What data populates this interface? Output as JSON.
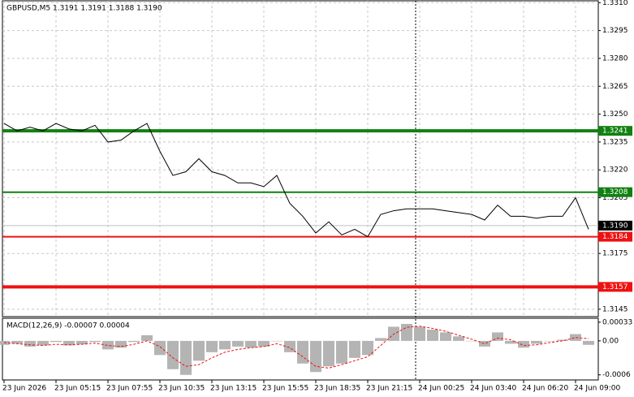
{
  "chart_data": [
    {
      "type": "line",
      "title": "GBPUSD,M5  1.3191 1.3191 1.3188 1.3190",
      "categories": [
        "23 Jun 2026",
        null,
        null,
        null,
        "23 Jun 05:15",
        null,
        null,
        null,
        "23 Jun 07:55",
        null,
        null,
        null,
        "23 Jun 10:35",
        null,
        null,
        null,
        "23 Jun 13:15",
        null,
        null,
        null,
        "23 Jun 15:55",
        null,
        null,
        null,
        "23 Jun 18:35",
        null,
        null,
        null,
        "23 Jun 21:15",
        null,
        null,
        null,
        "24 Jun 00:25",
        null,
        null,
        null,
        "24 Jun 03:40",
        null,
        null,
        null,
        "24 Jun 06:20",
        null,
        null,
        null,
        "24 Jun 09:00",
        null
      ],
      "series": [
        {
          "name": "GBPUSD",
          "color": "#000000",
          "values": [
            1.3245,
            1.3241,
            1.3243,
            1.3241,
            1.3245,
            1.3242,
            1.3241,
            1.3244,
            1.3235,
            1.3236,
            1.3241,
            1.3245,
            1.323,
            1.3217,
            1.3219,
            1.3226,
            1.3219,
            1.3217,
            1.3213,
            1.3213,
            1.3211,
            1.3217,
            1.3202,
            1.3195,
            1.3186,
            1.3192,
            1.3185,
            1.3188,
            1.3184,
            1.3196,
            1.3198,
            1.3199,
            1.3199,
            1.3199,
            1.3198,
            1.3197,
            1.3196,
            1.3193,
            1.3201,
            1.3195,
            1.3195,
            1.3194,
            1.3195,
            1.3195,
            1.3205,
            1.3188
          ]
        }
      ],
      "ylim": [
        1.3141,
        1.3311
      ],
      "yticks": [
        {
          "value": 1.331,
          "label": "1.3310"
        },
        {
          "value": 1.3295,
          "label": "1.3295"
        },
        {
          "value": 1.328,
          "label": "1.3280"
        },
        {
          "value": 1.3265,
          "label": "1.3265"
        },
        {
          "value": 1.325,
          "label": "1.3250"
        },
        {
          "value": 1.3235,
          "label": "1.3235"
        },
        {
          "value": 1.322,
          "label": "1.3220"
        },
        {
          "value": 1.3205,
          "label": "1.3205"
        },
        {
          "value": 1.3175,
          "label": "1.3175"
        },
        {
          "value": 1.3145,
          "label": "1.3145"
        }
      ],
      "grid": true,
      "levels": [
        {
          "value": 1.3241,
          "label": "1.3241",
          "color": "#118011",
          "width": 4
        },
        {
          "value": 1.3208,
          "label": "1.3208",
          "color": "#118011",
          "width": 2
        },
        {
          "value": 1.319,
          "label": "1.3190",
          "color": "#000000",
          "width": 1
        },
        {
          "value": 1.3184,
          "label": "1.3184",
          "color": "#ee1111",
          "width": 2
        },
        {
          "value": 1.3157,
          "label": "1.3157",
          "color": "#ee1111",
          "width": 4
        }
      ]
    },
    {
      "type": "macd",
      "title": "MACD(12,26,9) -0.00007 0.00004",
      "series": [
        {
          "name": "MACD",
          "color": "#b4b4b4",
          "values": [
            -7e-05,
            -5e-05,
            -0.0001,
            -8e-05,
            -2e-05,
            -8e-05,
            -6e-05,
            -2e-05,
            -0.00015,
            -0.00012,
            -2e-05,
            0.0001,
            -0.00025,
            -0.0005,
            -0.0006,
            -0.00035,
            -0.0002,
            -0.00015,
            -0.0001,
            -0.00012,
            -0.0001,
            0,
            -0.0002,
            -0.0004,
            -0.00055,
            -0.00045,
            -0.0004,
            -0.0003,
            -0.00025,
            5e-05,
            0.00025,
            0.0003,
            0.00025,
            0.0002,
            0.00015,
            8e-05,
            0,
            -0.0001,
            0.00015,
            -5e-05,
            -0.00012,
            -5e-05,
            0,
            2e-05,
            0.00012,
            -7e-05
          ]
        },
        {
          "name": "Signal",
          "color": "#ee1111",
          "values": [
            -3e-05,
            -5e-05,
            -7e-05,
            -8e-05,
            -6e-05,
            -7e-05,
            -6e-05,
            -4e-05,
            -8e-05,
            -0.0001,
            -6e-05,
            0,
            -0.0001,
            -0.0003,
            -0.00045,
            -0.00042,
            -0.0003,
            -0.0002,
            -0.00015,
            -0.00012,
            -0.0001,
            -5e-05,
            -0.00012,
            -0.00028,
            -0.00045,
            -0.00048,
            -0.00042,
            -0.00035,
            -0.00028,
            -8e-05,
            0.00012,
            0.00024,
            0.00026,
            0.00022,
            0.00017,
            0.0001,
            3e-05,
            -5e-05,
            5e-05,
            2e-05,
            -8e-05,
            -7e-05,
            -3e-05,
            0,
            6e-05,
            4e-05
          ]
        }
      ],
      "ylim": [
        -0.00069,
        0.0004
      ],
      "yticks": [
        0.00033,
        {
          "value": 0,
          "label": "0.00"
        },
        -0.0006
      ]
    }
  ]
}
